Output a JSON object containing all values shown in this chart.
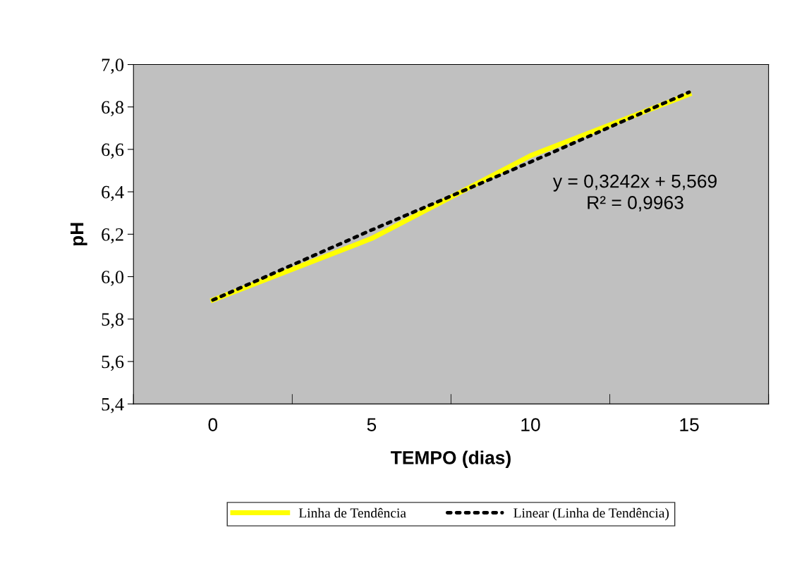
{
  "chart_data": {
    "type": "line",
    "xlabel": "TEMPO (dias)",
    "ylabel": "pH",
    "categories": [
      "0",
      "5",
      "10",
      "15"
    ],
    "series": [
      {
        "name": "Linha de Tendência",
        "color": "#ffff00",
        "values": [
          5.89,
          6.18,
          6.57,
          6.86
        ]
      },
      {
        "name": "Linear (Linha de Tendência)",
        "color": "#000000",
        "values": [
          5.89,
          6.22,
          6.54,
          6.87
        ],
        "line_style": "dotted"
      }
    ],
    "ylim": [
      5.4,
      7.0
    ],
    "yticks": [
      {
        "value": 5.4,
        "label": "5,4"
      },
      {
        "value": 5.6,
        "label": "5,6"
      },
      {
        "value": 5.8,
        "label": "5,8"
      },
      {
        "value": 6.0,
        "label": "6,0"
      },
      {
        "value": 6.2,
        "label": "6,2"
      },
      {
        "value": 6.4,
        "label": "6,4"
      },
      {
        "value": 6.6,
        "label": "6,6"
      },
      {
        "value": 6.8,
        "label": "6,8"
      },
      {
        "value": 7.0,
        "label": "7,0"
      }
    ],
    "annotations": [
      "y = 0,3242x + 5,569\nR² = 0,9963"
    ],
    "legend": "bottom",
    "grid": false,
    "marker": "none"
  }
}
